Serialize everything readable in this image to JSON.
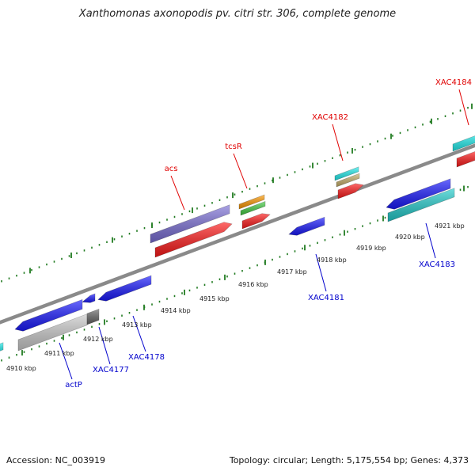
{
  "title": "Xanthomonas axonopodis pv. citri str. 306, complete genome",
  "footer": {
    "accession": "Accession: NC_003919",
    "summary": "Topology: circular; Length: 5,175,554 bp; Genes: 4,373"
  },
  "colors": {
    "backbone": "#8a8a8a",
    "tick": "#1f7a1f",
    "forward_label": "#e00000",
    "reverse_label": "#0000cc"
  },
  "scale": {
    "unit": "kbp",
    "labels": [
      "4910 kbp",
      "4911 kbp",
      "4912 kbp",
      "4913 kbp",
      "4914 kbp",
      "4915 kbp",
      "4916 kbp",
      "4917 kbp",
      "4918 kbp",
      "4919 kbp",
      "4920 kbp",
      "4921 kbp"
    ]
  },
  "gene_labels": [
    {
      "text": "acs",
      "strand": "forward"
    },
    {
      "text": "tcsR",
      "strand": "forward"
    },
    {
      "text": "XAC4182",
      "strand": "forward"
    },
    {
      "text": "XAC4184",
      "strand": "forward"
    },
    {
      "text": "XAC4181",
      "strand": "reverse"
    },
    {
      "text": "XAC4183",
      "strand": "reverse"
    },
    {
      "text": "XAC4178",
      "strand": "reverse"
    },
    {
      "text": "XAC4177",
      "strand": "reverse"
    },
    {
      "text": "actP",
      "strand": "reverse"
    }
  ],
  "features": [
    {
      "name": "acs",
      "color": "#7b6fd6"
    },
    {
      "name": "acs-cds",
      "color": "#ff1a1a"
    },
    {
      "name": "tcsR-orange",
      "color": "#ff9900"
    },
    {
      "name": "tcsR-green",
      "color": "#44cc44"
    },
    {
      "name": "tcsR-cds",
      "color": "#ff1a1a"
    },
    {
      "name": "XAC4182-cyan",
      "color": "#22eeee"
    },
    {
      "name": "XAC4182-tan",
      "color": "#c8b06a"
    },
    {
      "name": "XAC4182-cds",
      "color": "#ff1a1a"
    },
    {
      "name": "XAC4184-cyan",
      "color": "#22eeee"
    },
    {
      "name": "XAC4184-cds",
      "color": "#ff1a1a"
    },
    {
      "name": "XAC4181",
      "color": "#1a1aff"
    },
    {
      "name": "XAC4183",
      "color": "#1a1aff"
    },
    {
      "name": "XAC4183-teal",
      "color": "#22cccc"
    },
    {
      "name": "XAC4178",
      "color": "#1a1aff"
    },
    {
      "name": "XAC4177",
      "color": "#1a1aff"
    },
    {
      "name": "actP",
      "color": "#1a1aff"
    },
    {
      "name": "actP-gray",
      "color": "#cccccc"
    },
    {
      "name": "actP-dark",
      "color": "#666666"
    },
    {
      "name": "edge-cyan",
      "color": "#22eeee"
    }
  ]
}
